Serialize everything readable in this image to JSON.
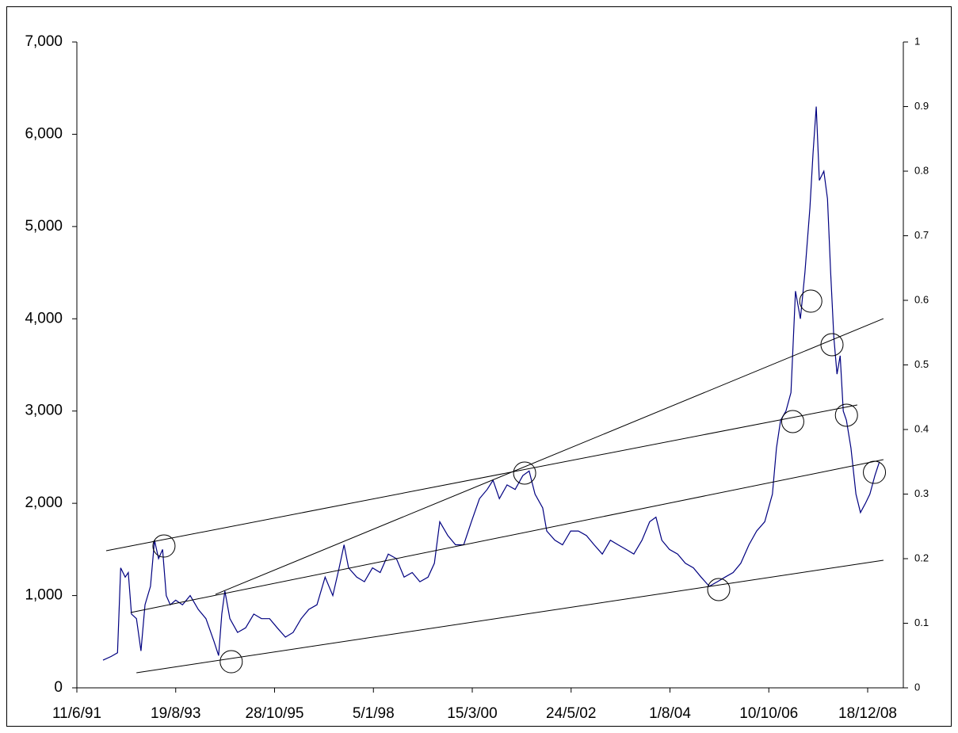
{
  "chart_data": {
    "type": "line",
    "xlim": [
      1991.44,
      2009.75
    ],
    "xticks": [
      {
        "value": 1991.44,
        "label": "11/6/91"
      },
      {
        "value": 1993.63,
        "label": "19/8/93"
      },
      {
        "value": 1995.82,
        "label": "28/10/95"
      },
      {
        "value": 1998.01,
        "label": "5/1/98"
      },
      {
        "value": 2000.2,
        "label": "15/3/00"
      },
      {
        "value": 2002.39,
        "label": "24/5/02"
      },
      {
        "value": 2004.58,
        "label": "1/8/04"
      },
      {
        "value": 2006.77,
        "label": "10/10/06"
      },
      {
        "value": 2008.96,
        "label": "18/12/08"
      }
    ],
    "ylim": [
      0,
      7000
    ],
    "yticks": [
      0,
      {
        "value": 1000,
        "label": "1,000"
      },
      {
        "value": 2000,
        "label": "2,000"
      },
      {
        "value": 3000,
        "label": "3,000"
      },
      {
        "value": 4000,
        "label": "4,000"
      },
      {
        "value": 5000,
        "label": "5,000"
      },
      {
        "value": 6000,
        "label": "6,000"
      },
      {
        "value": 7000,
        "label": "7,000"
      }
    ],
    "y2lim": [
      0,
      1
    ],
    "y2ticks": [
      0,
      0.1,
      0.2,
      0.3,
      0.4,
      0.5,
      0.6,
      0.7,
      0.8,
      0.9,
      1
    ],
    "grid": false,
    "series": [
      {
        "color": "#000080",
        "x": [
          1992.02,
          1992.2,
          1992.34,
          1992.41,
          1992.51,
          1992.58,
          1992.65,
          1992.76,
          1992.86,
          1992.95,
          1993.07,
          1993.16,
          1993.25,
          1993.34,
          1993.42,
          1993.51,
          1993.63,
          1993.78,
          1993.95,
          1994.13,
          1994.3,
          1994.48,
          1994.58,
          1994.65,
          1994.72,
          1994.83,
          1995.0,
          1995.18,
          1995.36,
          1995.53,
          1995.71,
          1995.88,
          1996.06,
          1996.23,
          1996.41,
          1996.58,
          1996.76,
          1996.94,
          1997.11,
          1997.25,
          1997.36,
          1997.46,
          1997.64,
          1997.81,
          1997.99,
          1998.16,
          1998.34,
          1998.52,
          1998.69,
          1998.87,
          1999.04,
          1999.22,
          1999.36,
          1999.48,
          1999.66,
          1999.83,
          2000.01,
          2000.18,
          2000.36,
          2000.53,
          2000.66,
          2000.8,
          2000.97,
          2001.15,
          2001.32,
          2001.46,
          2001.59,
          2001.76,
          2001.85,
          2002.03,
          2002.2,
          2002.38,
          2002.55,
          2002.73,
          2002.9,
          2003.08,
          2003.26,
          2003.43,
          2003.61,
          2003.78,
          2003.96,
          2004.13,
          2004.27,
          2004.4,
          2004.57,
          2004.75,
          2004.92,
          2005.1,
          2005.27,
          2005.45,
          2005.63,
          2005.8,
          2005.98,
          2006.15,
          2006.33,
          2006.5,
          2006.68,
          2006.85,
          2006.94,
          2007.03,
          2007.15,
          2007.26,
          2007.36,
          2007.47,
          2007.57,
          2007.68,
          2007.75,
          2007.82,
          2007.89,
          2007.99,
          2008.07,
          2008.14,
          2008.21,
          2008.28,
          2008.35,
          2008.42,
          2008.49,
          2008.59,
          2008.7,
          2008.8,
          2008.91,
          2009.01,
          2009.12,
          2009.22
        ],
        "values": [
          300,
          340,
          380,
          1300,
          1200,
          1250,
          800,
          750,
          400,
          900,
          1100,
          1600,
          1400,
          1500,
          1000,
          900,
          950,
          900,
          1000,
          850,
          750,
          500,
          350,
          800,
          1050,
          750,
          600,
          650,
          800,
          750,
          750,
          650,
          550,
          600,
          750,
          850,
          900,
          1200,
          1000,
          1300,
          1550,
          1300,
          1200,
          1150,
          1300,
          1250,
          1450,
          1400,
          1200,
          1250,
          1150,
          1200,
          1350,
          1800,
          1650,
          1550,
          1550,
          1800,
          2050,
          2150,
          2250,
          2050,
          2200,
          2150,
          2300,
          2350,
          2100,
          1950,
          1700,
          1600,
          1550,
          1700,
          1700,
          1650,
          1550,
          1450,
          1600,
          1550,
          1500,
          1450,
          1600,
          1800,
          1850,
          1600,
          1500,
          1450,
          1350,
          1300,
          1200,
          1100,
          1150,
          1200,
          1250,
          1350,
          1550,
          1700,
          1800,
          2100,
          2600,
          2900,
          3000,
          3200,
          4300,
          4000,
          4500,
          5200,
          5800,
          6300,
          5500,
          5600,
          5300,
          4500,
          3800,
          3400,
          3600,
          3000,
          2900,
          2600,
          2100,
          1900,
          2000,
          2100,
          2300,
          2450
        ]
      }
    ],
    "trend_lines": [
      {
        "x": [
          1992.09,
          2008.73
        ],
        "values": [
          1486,
          3066
        ]
      },
      {
        "x": [
          1994.51,
          2009.31
        ],
        "values": [
          1013,
          4002
        ]
      },
      {
        "x": [
          1992.63,
          2009.31
        ],
        "values": [
          816,
          2474
        ]
      },
      {
        "x": [
          1992.76,
          2009.31
        ],
        "values": [
          163,
          1383
        ]
      }
    ],
    "circles": [
      {
        "x": 1993.37,
        "value": 1537
      },
      {
        "x": 1994.86,
        "value": 283
      },
      {
        "x": 2001.36,
        "value": 2328
      },
      {
        "x": 2005.66,
        "value": 1065
      },
      {
        "x": 2007.3,
        "value": 2886
      },
      {
        "x": 2007.7,
        "value": 4191
      },
      {
        "x": 2008.17,
        "value": 3719
      },
      {
        "x": 2008.49,
        "value": 2955
      },
      {
        "x": 2009.11,
        "value": 2336
      }
    ]
  }
}
